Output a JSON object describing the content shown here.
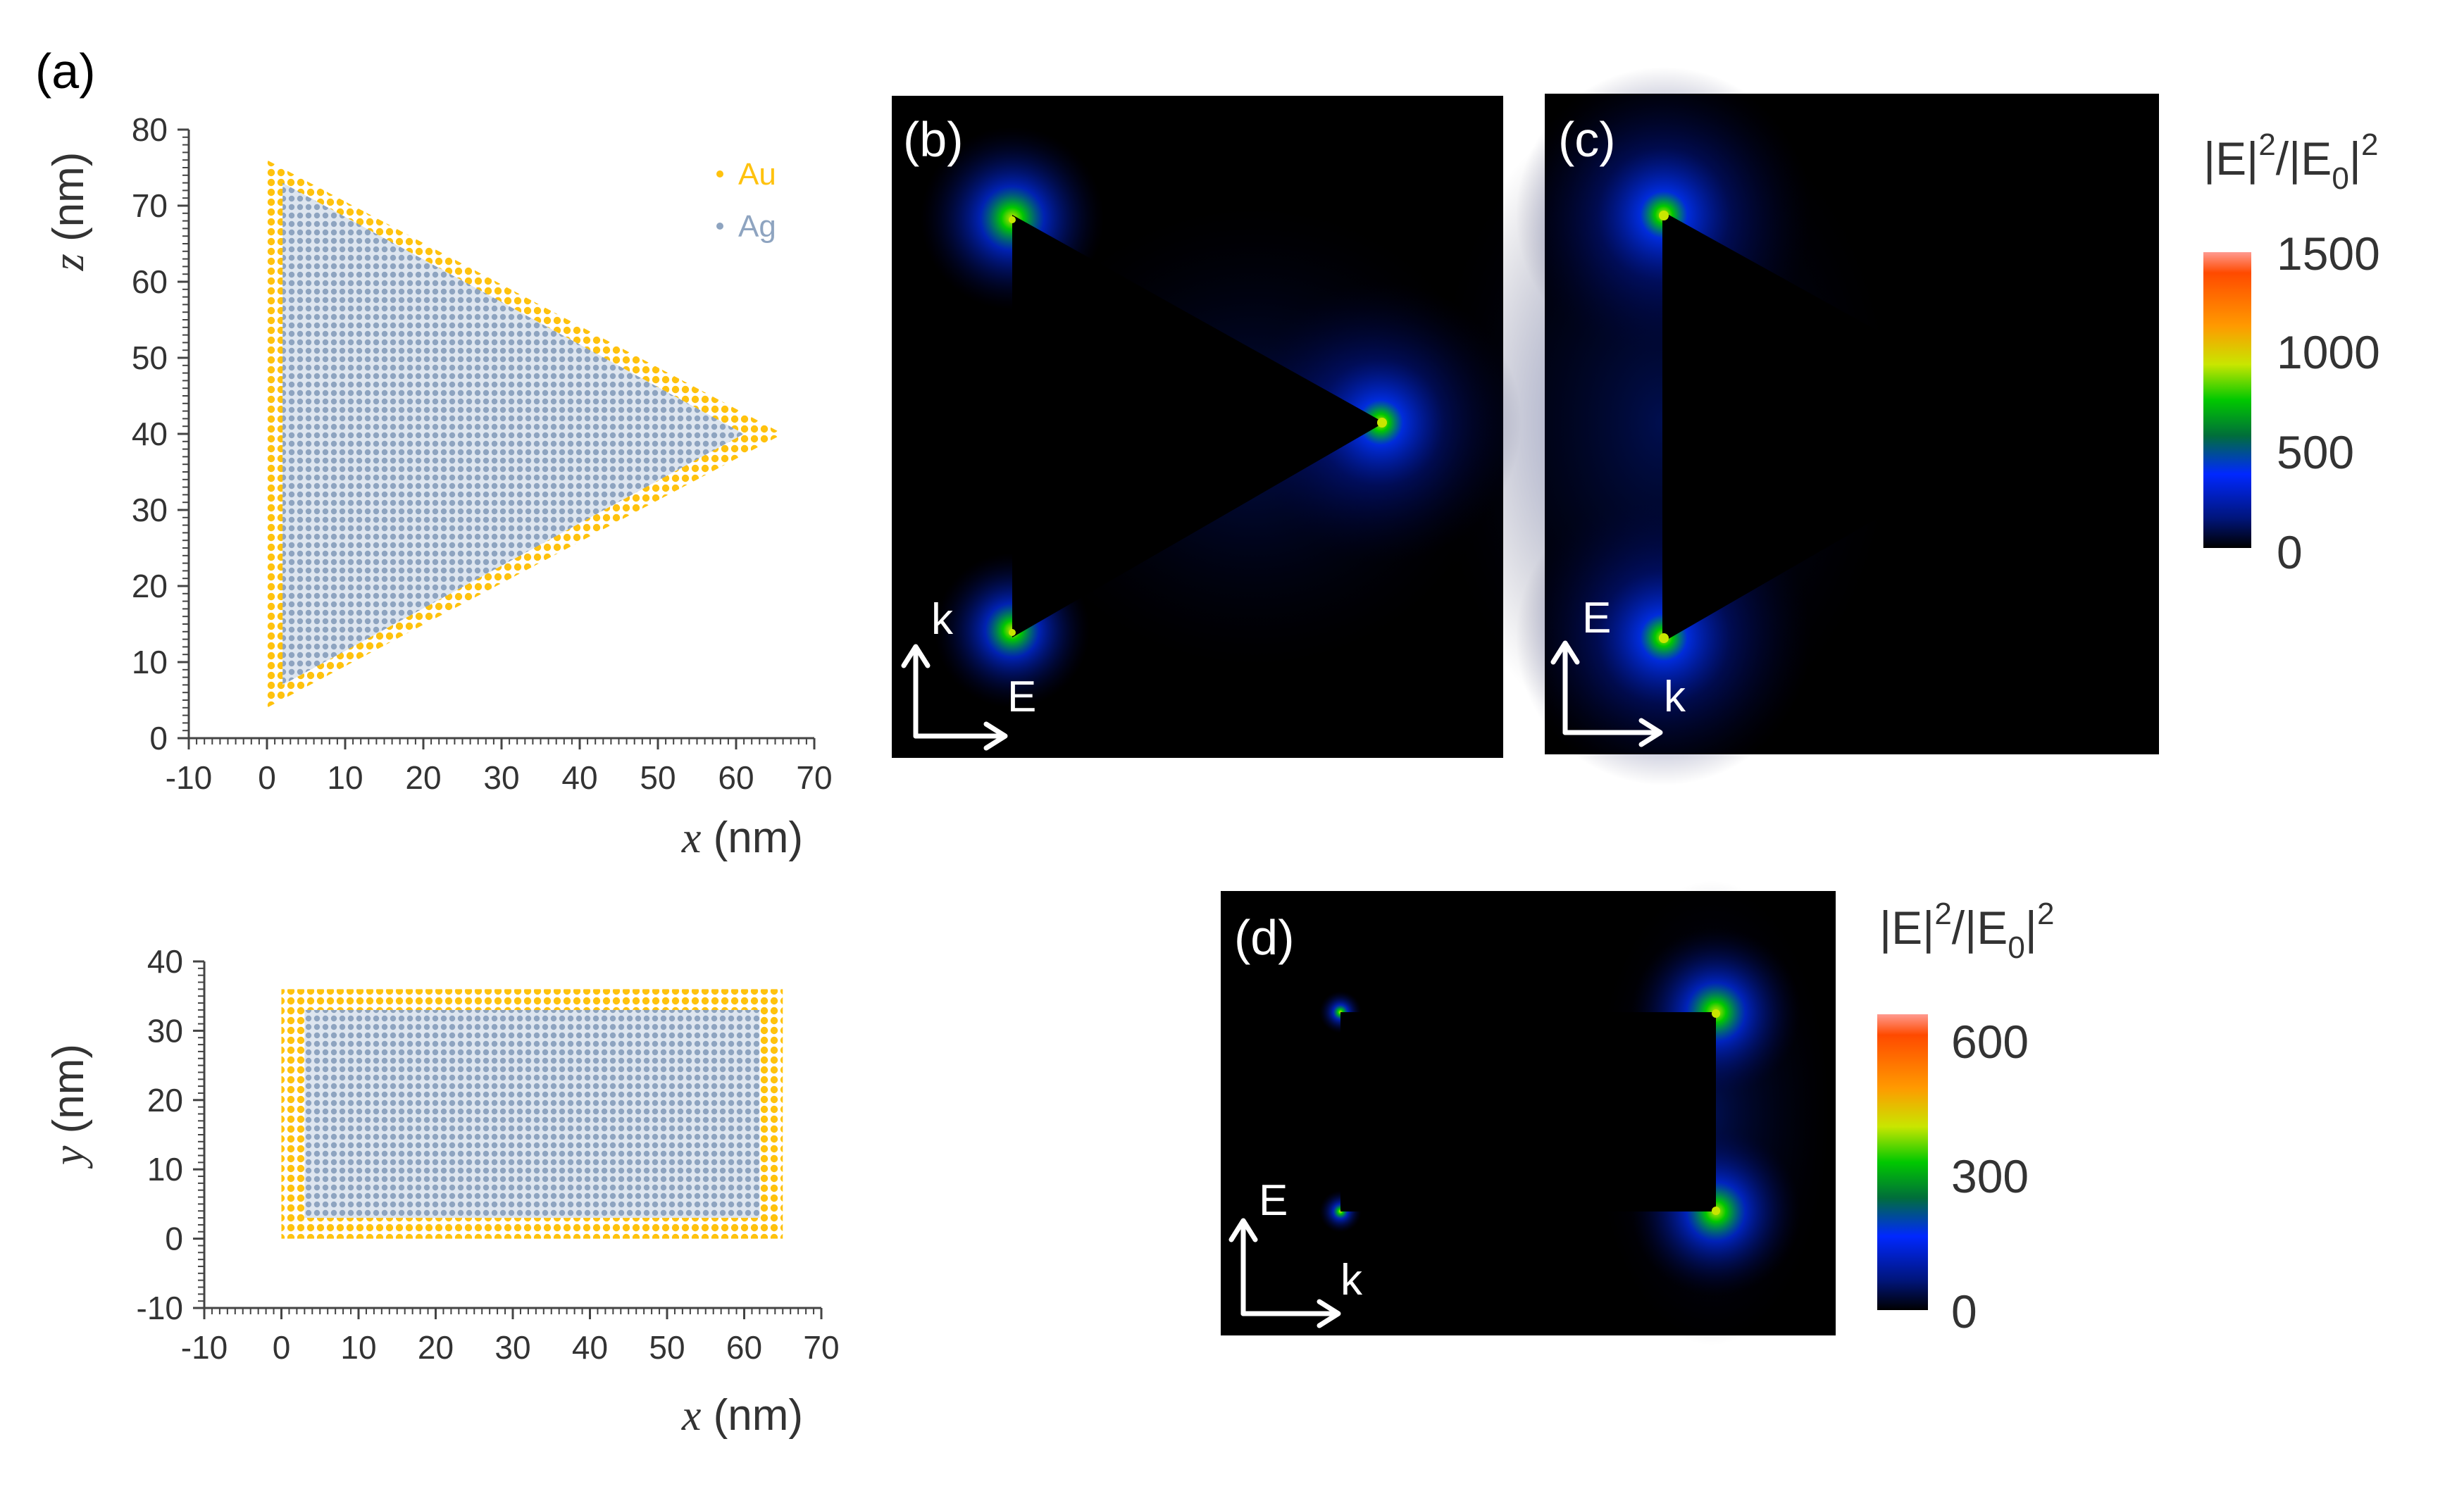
{
  "panel_labels": {
    "a": "(a)",
    "b": "(b)",
    "c": "(c)",
    "d": "(d)"
  },
  "colors": {
    "au": "#ffc20e",
    "ag": "#8ea4c0",
    "field_background": "#000000",
    "arrow": "#ffffff",
    "colormap": [
      "#000000",
      "#00157a",
      "#0028ff",
      "#006e3a",
      "#00c800",
      "#c8e600",
      "#ff9a00",
      "#ff4a00",
      "#ff9a90"
    ]
  },
  "legend": {
    "au": "Au",
    "ag": "Ag"
  },
  "chart_data": [
    {
      "type": "scatter",
      "name": "xz-cross-section",
      "xlabel_var": "x",
      "xlabel_unit": " (nm)",
      "ylabel_var": "z",
      "ylabel_unit": " (nm)",
      "xlim": [
        -10,
        70
      ],
      "ylim": [
        0,
        80
      ],
      "xticks": [
        -10,
        0,
        10,
        20,
        30,
        40,
        50,
        60,
        70
      ],
      "yticks": [
        0,
        10,
        20,
        30,
        40,
        50,
        60,
        70,
        80
      ],
      "series": [
        {
          "name": "Au",
          "shape": "triangle-shell",
          "vertices": [
            [
              0,
              4
            ],
            [
              0,
              76
            ],
            [
              66,
              40
            ]
          ]
        },
        {
          "name": "Ag",
          "shape": "triangle-core",
          "vertices": [
            [
              2,
              7
            ],
            [
              2,
              73
            ],
            [
              61,
              40
            ]
          ]
        }
      ],
      "grid": false,
      "legend_position": "top-right"
    },
    {
      "type": "scatter",
      "name": "xy-cross-section",
      "xlabel_var": "x",
      "xlabel_unit": " (nm)",
      "ylabel_var": "y",
      "ylabel_unit": " (nm)",
      "xlim": [
        -10,
        70
      ],
      "ylim": [
        -10,
        40
      ],
      "xticks": [
        -10,
        0,
        10,
        20,
        30,
        40,
        50,
        60,
        70
      ],
      "yticks": [
        -10,
        0,
        10,
        20,
        30,
        40
      ],
      "series": [
        {
          "name": "Au",
          "shape": "rect-shell",
          "x": [
            0,
            65
          ],
          "y": [
            0,
            36
          ]
        },
        {
          "name": "Ag",
          "shape": "rect-core",
          "x": [
            3,
            62
          ],
          "y": [
            3,
            33
          ]
        }
      ],
      "grid": false
    }
  ],
  "field_maps": {
    "b": {
      "k_label": "k",
      "e_label": "E",
      "hot_spots": "all three triangle tips"
    },
    "c": {
      "e_label": "E",
      "k_label": "k",
      "hot_spots": "left edge corners"
    },
    "d": {
      "e_label": "E",
      "k_label": "k",
      "hot_spots": "right edge corners"
    }
  },
  "colorbars": [
    {
      "title_base": "|E|",
      "title_sup": "2",
      "title_sep": "/|E",
      "title_sub": "0",
      "title_end": "|",
      "title_sup2": "2",
      "ticks": [
        "1500",
        "1000",
        "500",
        "0"
      ],
      "max": 1500
    },
    {
      "title_base": "|E|",
      "title_sup": "2",
      "title_sep": "/|E",
      "title_sub": "0",
      "title_end": "|",
      "title_sup2": "2",
      "ticks": [
        "600",
        "300",
        "0"
      ],
      "max": 600
    }
  ]
}
